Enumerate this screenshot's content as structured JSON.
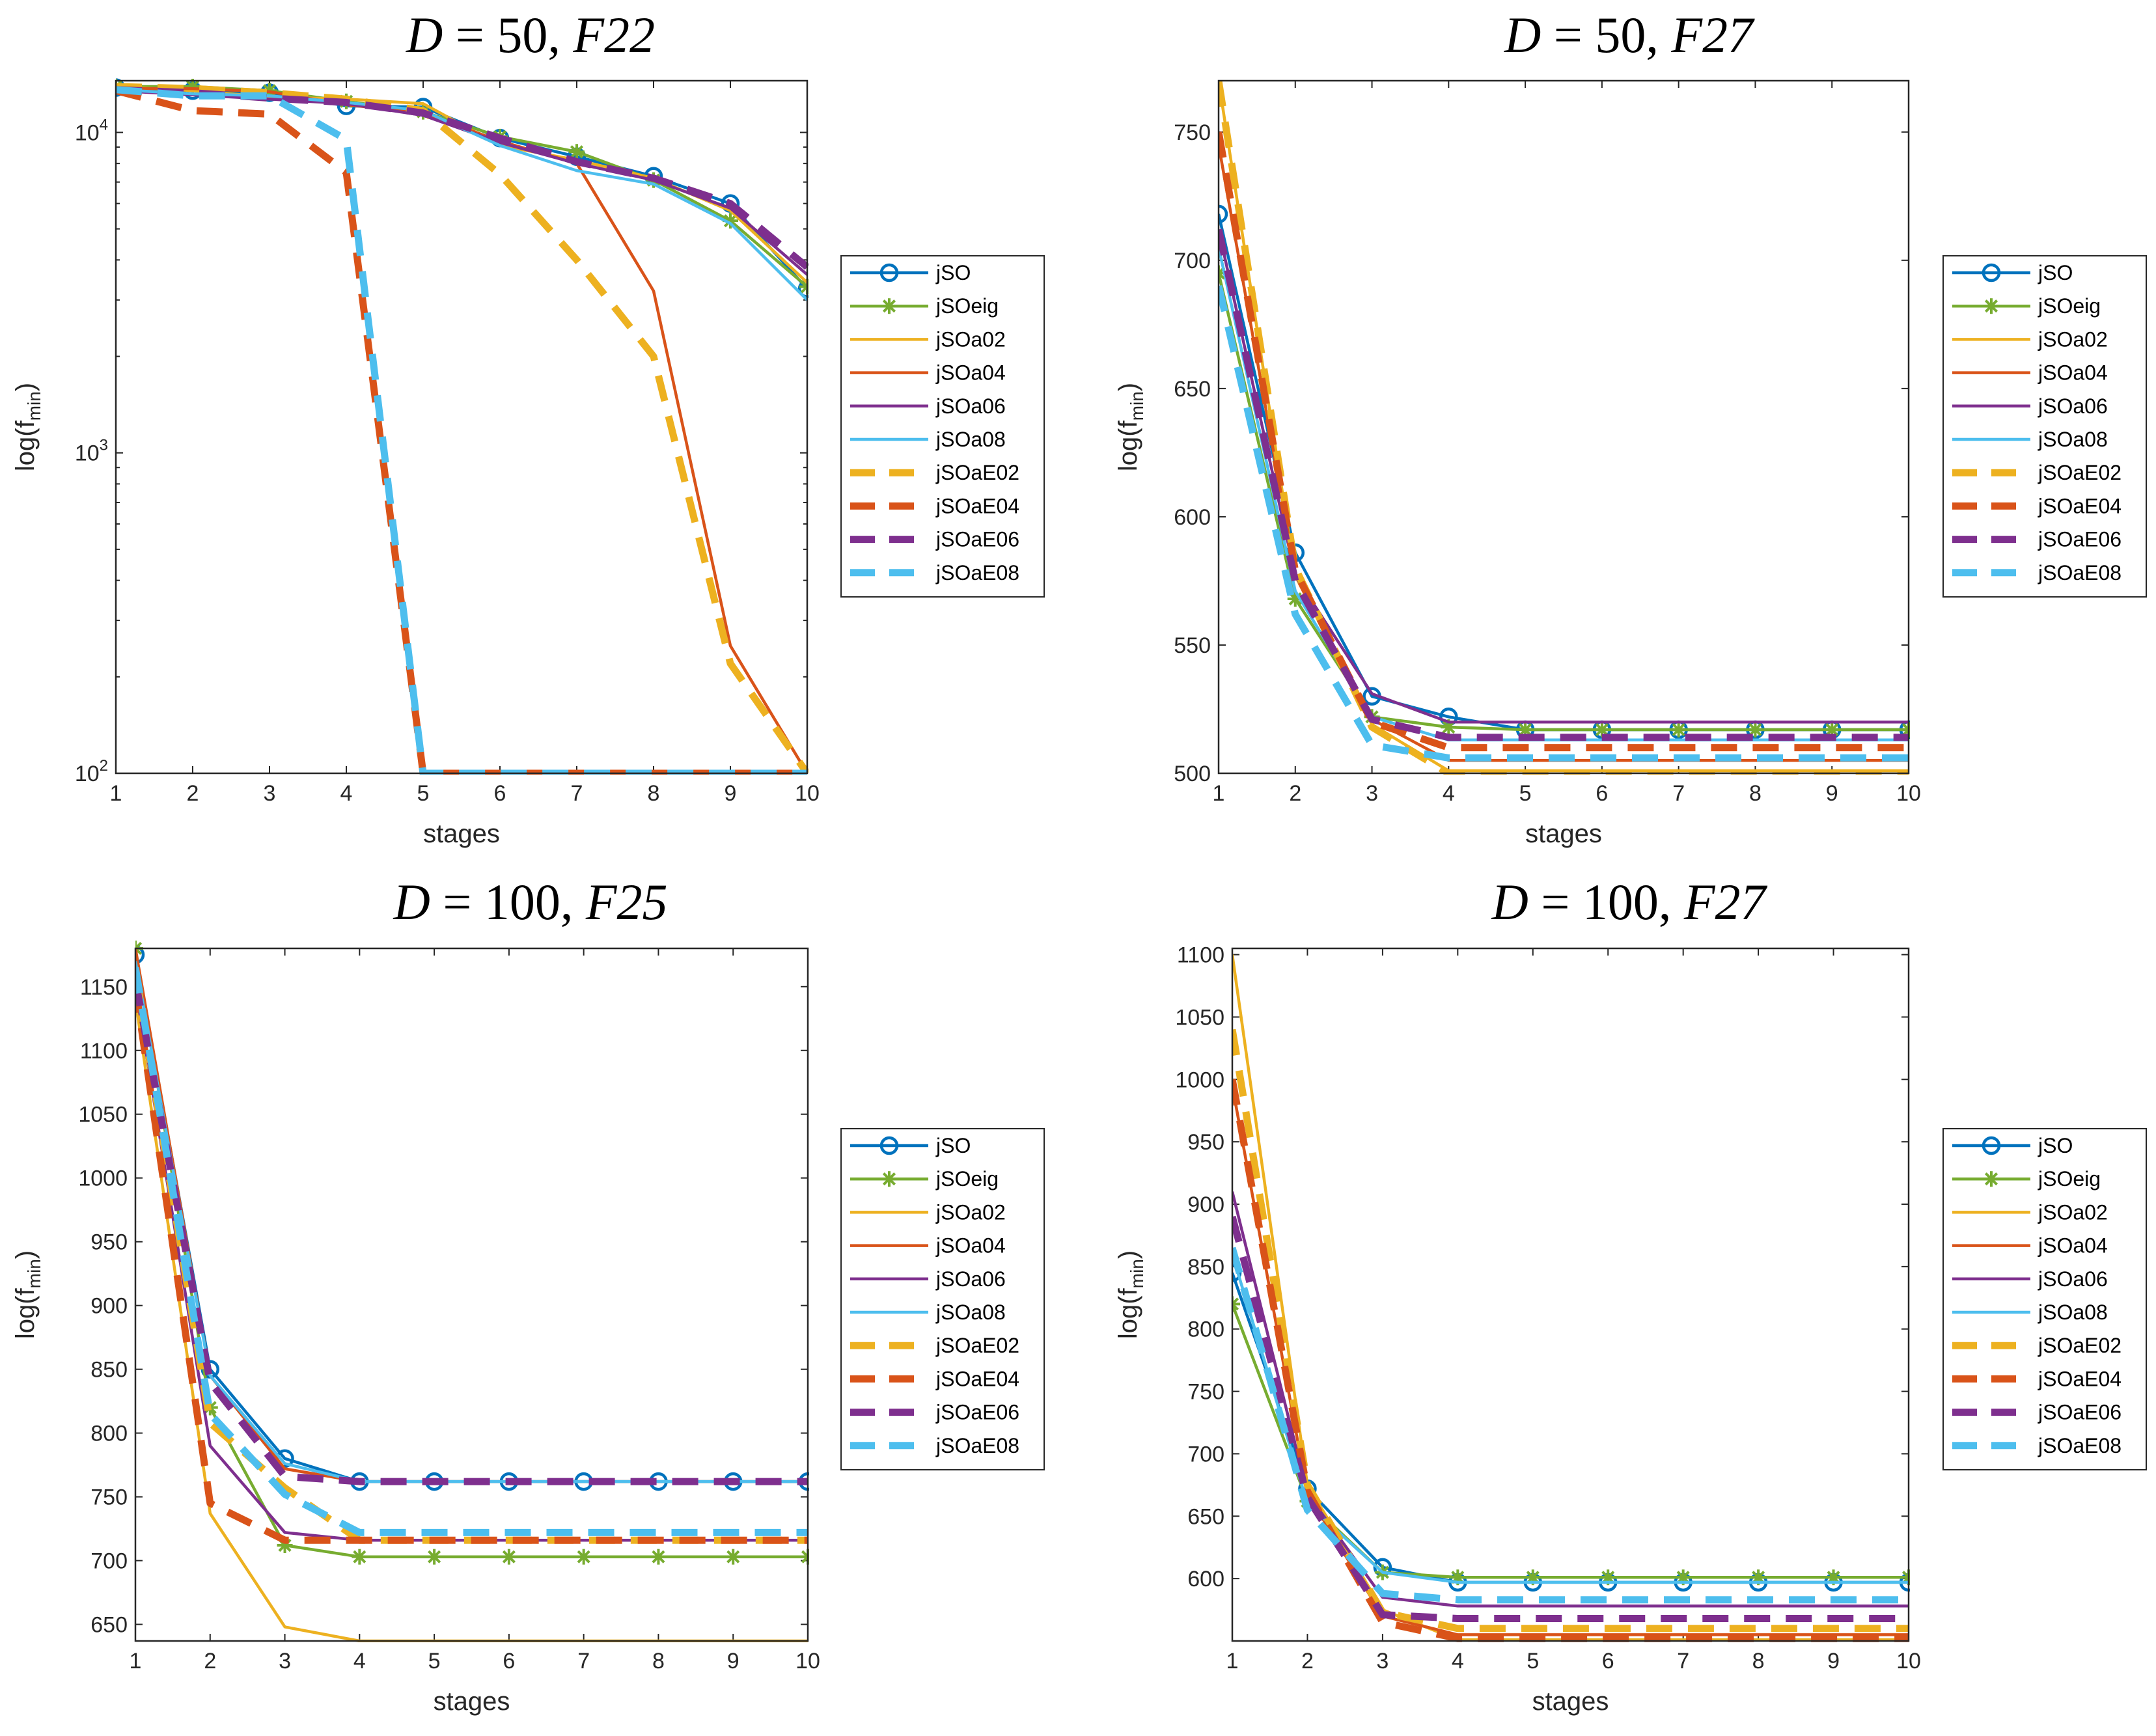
{
  "colors": {
    "jSO": "#0072BD",
    "jSOeig": "#77AC30",
    "jSOa02": "#EDB120",
    "jSOa04": "#D95319",
    "jSOa06": "#7E2F8E",
    "jSOa08": "#4DBEEE",
    "jSOaE02": "#EDB120",
    "jSOaE04": "#D95319",
    "jSOaE06": "#7E2F8E",
    "jSOaE08": "#4DBEEE",
    "axis": "#262626",
    "background": "#ffffff"
  },
  "chart_data": [
    {
      "type": "line",
      "title": {
        "lhs": "D",
        "eq": " = ",
        "d": "50",
        "sep": ", ",
        "f": "F22"
      },
      "xlabel": "stages",
      "ylabel": {
        "main": "log(f",
        "sub": "min",
        "end": ")"
      },
      "xscale": "linear",
      "yscale": "log",
      "xlim": [
        1,
        10
      ],
      "ylim": [
        100,
        14500
      ],
      "xticks": [
        "1",
        "2",
        "3",
        "4",
        "5",
        "6",
        "7",
        "8",
        "9",
        "10"
      ],
      "yticks": [
        {
          "value": 100,
          "base": "10",
          "exp": "2"
        },
        {
          "value": 1000,
          "base": "10",
          "exp": "3"
        },
        {
          "value": 10000,
          "base": "10",
          "exp": "4"
        }
      ],
      "legend_position": "right",
      "x": [
        1,
        2,
        3,
        4,
        5,
        6,
        7,
        8,
        9,
        10
      ],
      "series": [
        {
          "name": "jSO",
          "style": "solid",
          "marker": "circle",
          "values": [
            13800,
            13500,
            13300,
            12100,
            12000,
            9600,
            8400,
            7300,
            6000,
            3250
          ]
        },
        {
          "name": "jSOeig",
          "style": "solid",
          "marker": "asterisk",
          "values": [
            13900,
            13900,
            13500,
            12500,
            11600,
            9700,
            8700,
            7100,
            5300,
            3300
          ]
        },
        {
          "name": "jSOa02",
          "style": "solid",
          "marker": "none",
          "values": [
            13900,
            13500,
            12900,
            12700,
            12300,
            9100,
            8200,
            7200,
            5700,
            3400
          ]
        },
        {
          "name": "jSOa04",
          "style": "solid",
          "marker": "none",
          "values": [
            13700,
            13700,
            13400,
            12200,
            11500,
            9400,
            8000,
            3200,
            250,
            100
          ]
        },
        {
          "name": "jSOa06",
          "style": "solid",
          "marker": "none",
          "values": [
            13500,
            13100,
            12700,
            12300,
            11300,
            9300,
            8000,
            7100,
            5800,
            3600
          ]
        },
        {
          "name": "jSOa08",
          "style": "solid",
          "marker": "none",
          "values": [
            13600,
            13200,
            13000,
            12400,
            11700,
            9100,
            7600,
            6900,
            5200,
            3000
          ]
        },
        {
          "name": "jSOaE02",
          "style": "dashed",
          "marker": "none",
          "values": [
            13900,
            13700,
            13300,
            12700,
            11700,
            7400,
            4000,
            2000,
            220,
            100
          ]
        },
        {
          "name": "jSOaE04",
          "style": "dashed",
          "marker": "none",
          "values": [
            13500,
            11700,
            11400,
            7500,
            100,
            100,
            100,
            100,
            100,
            100
          ]
        },
        {
          "name": "jSOaE06",
          "style": "dashed",
          "marker": "none",
          "values": [
            13600,
            13300,
            12800,
            12400,
            11500,
            9600,
            8100,
            7200,
            6000,
            3800
          ]
        },
        {
          "name": "jSOaE08",
          "style": "dashed",
          "marker": "none",
          "values": [
            13600,
            13000,
            13000,
            9500,
            100,
            100,
            100,
            100,
            100,
            100
          ]
        }
      ]
    },
    {
      "type": "line",
      "title": {
        "lhs": "D",
        "eq": " = ",
        "d": "50",
        "sep": ", ",
        "f": "F27"
      },
      "xlabel": "stages",
      "ylabel": {
        "main": "log(f",
        "sub": "min",
        "end": ")"
      },
      "xscale": "linear",
      "yscale": "linear",
      "xlim": [
        1,
        10
      ],
      "ylim": [
        500,
        770
      ],
      "xticks": [
        "1",
        "2",
        "3",
        "4",
        "5",
        "6",
        "7",
        "8",
        "9",
        "10"
      ],
      "yticks": [
        {
          "value": 500,
          "label": "500"
        },
        {
          "value": 550,
          "label": "550"
        },
        {
          "value": 600,
          "label": "600"
        },
        {
          "value": 650,
          "label": "650"
        },
        {
          "value": 700,
          "label": "700"
        },
        {
          "value": 750,
          "label": "750"
        }
      ],
      "legend_position": "right",
      "x": [
        1,
        2,
        3,
        4,
        5,
        6,
        7,
        8,
        9,
        10
      ],
      "series": [
        {
          "name": "jSO",
          "style": "solid",
          "marker": "circle",
          "values": [
            718,
            586,
            530,
            522,
            517,
            517,
            517,
            517,
            517,
            517
          ]
        },
        {
          "name": "jSOeig",
          "style": "solid",
          "marker": "asterisk",
          "values": [
            695,
            568,
            522,
            518,
            517,
            517,
            517,
            517,
            517,
            517
          ]
        },
        {
          "name": "jSOa02",
          "style": "solid",
          "marker": "none",
          "values": [
            770,
            577,
            519,
            501,
            501,
            501,
            501,
            501,
            501,
            501
          ]
        },
        {
          "name": "jSOa04",
          "style": "solid",
          "marker": "none",
          "values": [
            745,
            578,
            521,
            505,
            505,
            505,
            505,
            505,
            505,
            505
          ]
        },
        {
          "name": "jSOa06",
          "style": "solid",
          "marker": "none",
          "values": [
            712,
            577,
            531,
            520,
            520,
            520,
            520,
            520,
            520,
            520
          ]
        },
        {
          "name": "jSOa08",
          "style": "solid",
          "marker": "none",
          "values": [
            705,
            571,
            522,
            513,
            513,
            513,
            513,
            513,
            513,
            513
          ]
        },
        {
          "name": "jSOaE02",
          "style": "dashed",
          "marker": "none",
          "values": [
            770,
            580,
            518,
            500,
            500,
            500,
            500,
            500,
            500,
            500
          ]
        },
        {
          "name": "jSOaE04",
          "style": "dashed",
          "marker": "none",
          "values": [
            750,
            579,
            520,
            510,
            510,
            510,
            510,
            510,
            510,
            510
          ]
        },
        {
          "name": "jSOaE06",
          "style": "dashed",
          "marker": "none",
          "values": [
            712,
            575,
            521,
            514,
            514,
            514,
            514,
            514,
            514,
            514
          ]
        },
        {
          "name": "jSOaE08",
          "style": "dashed",
          "marker": "none",
          "values": [
            690,
            562,
            511,
            506,
            506,
            506,
            506,
            506,
            506,
            506
          ]
        }
      ]
    },
    {
      "type": "line",
      "title": {
        "lhs": "D",
        "eq": " = ",
        "d": "100",
        "sep": ", ",
        "f": "F25"
      },
      "xlabel": "stages",
      "ylabel": {
        "main": "log(f",
        "sub": "min",
        "end": ")"
      },
      "xscale": "linear",
      "yscale": "linear",
      "xlim": [
        1,
        10
      ],
      "ylim": [
        637,
        1180
      ],
      "xticks": [
        "1",
        "2",
        "3",
        "4",
        "5",
        "6",
        "7",
        "8",
        "9",
        "10"
      ],
      "yticks": [
        {
          "value": 650,
          "label": "650"
        },
        {
          "value": 700,
          "label": "700"
        },
        {
          "value": 750,
          "label": "750"
        },
        {
          "value": 800,
          "label": "800"
        },
        {
          "value": 850,
          "label": "850"
        },
        {
          "value": 900,
          "label": "900"
        },
        {
          "value": 950,
          "label": "950"
        },
        {
          "value": 1000,
          "label": "1000"
        },
        {
          "value": 1050,
          "label": "1050"
        },
        {
          "value": 1100,
          "label": "1100"
        },
        {
          "value": 1150,
          "label": "1150"
        }
      ],
      "legend_position": "right",
      "x": [
        1,
        2,
        3,
        4,
        5,
        6,
        7,
        8,
        9,
        10
      ],
      "series": [
        {
          "name": "jSO",
          "style": "solid",
          "marker": "circle",
          "values": [
            1175,
            850,
            780,
            762,
            762,
            762,
            762,
            762,
            762,
            762
          ]
        },
        {
          "name": "jSOeig",
          "style": "solid",
          "marker": "asterisk",
          "values": [
            1180,
            820,
            712,
            703,
            703,
            703,
            703,
            703,
            703,
            703
          ]
        },
        {
          "name": "jSOa02",
          "style": "solid",
          "marker": "none",
          "values": [
            1140,
            737,
            648,
            637,
            637,
            637,
            637,
            637,
            637,
            637
          ]
        },
        {
          "name": "jSOa04",
          "style": "solid",
          "marker": "none",
          "values": [
            1180,
            845,
            772,
            762,
            762,
            762,
            762,
            762,
            762,
            762
          ]
        },
        {
          "name": "jSOa06",
          "style": "solid",
          "marker": "none",
          "values": [
            1150,
            790,
            722,
            716,
            716,
            716,
            716,
            716,
            716,
            716
          ]
        },
        {
          "name": "jSOa08",
          "style": "solid",
          "marker": "none",
          "values": [
            1170,
            845,
            776,
            762,
            762,
            762,
            762,
            762,
            762,
            762
          ]
        },
        {
          "name": "jSOaE02",
          "style": "dashed",
          "marker": "none",
          "values": [
            1160,
            808,
            757,
            716,
            716,
            716,
            716,
            716,
            716,
            716
          ]
        },
        {
          "name": "jSOaE04",
          "style": "dashed",
          "marker": "none",
          "values": [
            1150,
            745,
            716,
            716,
            716,
            716,
            716,
            716,
            716,
            716
          ]
        },
        {
          "name": "jSOaE06",
          "style": "dashed",
          "marker": "none",
          "values": [
            1155,
            840,
            766,
            762,
            762,
            762,
            762,
            762,
            762,
            762
          ]
        },
        {
          "name": "jSOaE08",
          "style": "dashed",
          "marker": "none",
          "values": [
            1165,
            815,
            752,
            722,
            722,
            722,
            722,
            722,
            722,
            722
          ]
        }
      ]
    },
    {
      "type": "line",
      "title": {
        "lhs": "D",
        "eq": " = ",
        "d": "100",
        "sep": ", ",
        "f": "F27"
      },
      "xlabel": "stages",
      "ylabel": {
        "main": "log(f",
        "sub": "min",
        "end": ")"
      },
      "xscale": "linear",
      "yscale": "linear",
      "xlim": [
        1,
        10
      ],
      "ylim": [
        550,
        1105
      ],
      "xticks": [
        "1",
        "2",
        "3",
        "4",
        "5",
        "6",
        "7",
        "8",
        "9",
        "10"
      ],
      "yticks": [
        {
          "value": 600,
          "label": "600"
        },
        {
          "value": 650,
          "label": "650"
        },
        {
          "value": 700,
          "label": "700"
        },
        {
          "value": 750,
          "label": "750"
        },
        {
          "value": 800,
          "label": "800"
        },
        {
          "value": 850,
          "label": "850"
        },
        {
          "value": 900,
          "label": "900"
        },
        {
          "value": 950,
          "label": "950"
        },
        {
          "value": 1000,
          "label": "1000"
        },
        {
          "value": 1050,
          "label": "1050"
        },
        {
          "value": 1100,
          "label": "1100"
        }
      ],
      "legend_position": "right",
      "x": [
        1,
        2,
        3,
        4,
        5,
        6,
        7,
        8,
        9,
        10
      ],
      "series": [
        {
          "name": "jSO",
          "style": "solid",
          "marker": "circle",
          "values": [
            845,
            672,
            609,
            597,
            597,
            597,
            597,
            597,
            597,
            597
          ]
        },
        {
          "name": "jSOeig",
          "style": "solid",
          "marker": "asterisk",
          "values": [
            820,
            662,
            605,
            601,
            601,
            601,
            601,
            601,
            601,
            601
          ]
        },
        {
          "name": "jSOa02",
          "style": "solid",
          "marker": "none",
          "values": [
            1100,
            675,
            575,
            551,
            551,
            551,
            551,
            551,
            551,
            551
          ]
        },
        {
          "name": "jSOa04",
          "style": "solid",
          "marker": "none",
          "values": [
            995,
            668,
            570,
            555,
            555,
            555,
            555,
            555,
            555,
            555
          ]
        },
        {
          "name": "jSOa06",
          "style": "solid",
          "marker": "none",
          "values": [
            910,
            668,
            585,
            578,
            578,
            578,
            578,
            578,
            578,
            578
          ]
        },
        {
          "name": "jSOa08",
          "style": "solid",
          "marker": "none",
          "values": [
            860,
            660,
            605,
            597,
            597,
            597,
            597,
            597,
            597,
            597
          ]
        },
        {
          "name": "jSOaE02",
          "style": "dashed",
          "marker": "none",
          "values": [
            1040,
            675,
            573,
            560,
            560,
            560,
            560,
            560,
            560,
            560
          ]
        },
        {
          "name": "jSOaE04",
          "style": "dashed",
          "marker": "none",
          "values": [
            1000,
            670,
            565,
            552,
            552,
            552,
            552,
            552,
            552,
            552
          ]
        },
        {
          "name": "jSOaE06",
          "style": "dashed",
          "marker": "none",
          "values": [
            890,
            665,
            571,
            568,
            568,
            568,
            568,
            568,
            568,
            568
          ]
        },
        {
          "name": "jSOaE08",
          "style": "dashed",
          "marker": "none",
          "values": [
            865,
            655,
            588,
            583,
            583,
            583,
            583,
            583,
            583,
            583
          ]
        }
      ]
    }
  ]
}
